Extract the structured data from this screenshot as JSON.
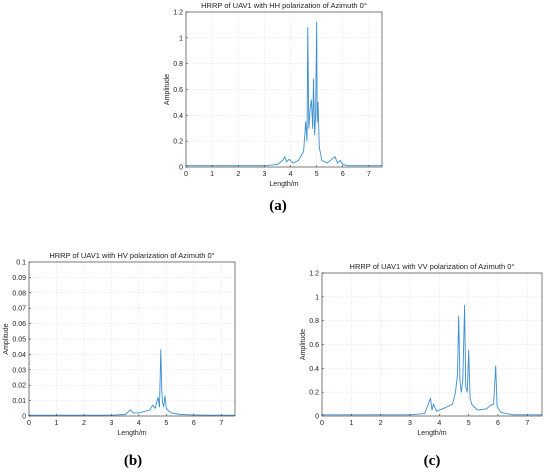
{
  "chart_data": [
    {
      "type": "line",
      "panel": "a",
      "caption": "(a)",
      "title": "HRRP of UAV1 with HH polarization of Azimuth 0°",
      "xlabel": "Length/m",
      "ylabel": "Amplitude",
      "xlim": [
        0,
        7.5
      ],
      "ylim": [
        0,
        1.2
      ],
      "xticks": [
        0,
        1,
        2,
        3,
        4,
        5,
        6,
        7
      ],
      "yticks": [
        0,
        0.2,
        0.4,
        0.6,
        0.8,
        1,
        1.2
      ],
      "ytick_labels": [
        "0",
        "0.2",
        "0.4",
        "0.6",
        "0.8",
        "1",
        "1.2"
      ],
      "grid": true,
      "color": "#3a8fcf",
      "x": [
        0,
        0.5,
        1,
        1.5,
        2,
        2.5,
        3,
        3.5,
        3.7,
        3.78,
        3.85,
        3.95,
        4.1,
        4.3,
        4.5,
        4.58,
        4.63,
        4.66,
        4.7,
        4.75,
        4.8,
        4.85,
        4.88,
        4.92,
        4.96,
        5.0,
        5.02,
        5.05,
        5.1,
        5.2,
        5.4,
        5.7,
        5.8,
        5.9,
        6.0,
        6.2,
        6.5,
        7,
        7.5
      ],
      "y": [
        0.01,
        0.01,
        0.01,
        0.01,
        0.01,
        0.01,
        0.01,
        0.02,
        0.05,
        0.08,
        0.04,
        0.06,
        0.03,
        0.05,
        0.12,
        0.35,
        0.2,
        1.08,
        0.3,
        0.45,
        0.52,
        0.3,
        0.68,
        0.25,
        0.4,
        1.12,
        0.35,
        0.5,
        0.15,
        0.05,
        0.03,
        0.08,
        0.03,
        0.05,
        0.02,
        0.01,
        0.01,
        0.01,
        0.01
      ]
    },
    {
      "type": "line",
      "panel": "b",
      "caption": "(b)",
      "title": "HRRP of UAV1 with HV polarization of Azimuth 0°",
      "xlabel": "Length/m",
      "ylabel": "Amplitude",
      "xlim": [
        0,
        7.5
      ],
      "ylim": [
        0,
        0.1
      ],
      "xticks": [
        0,
        1,
        2,
        3,
        4,
        5,
        6,
        7
      ],
      "yticks": [
        0,
        0.01,
        0.02,
        0.03,
        0.04,
        0.05,
        0.06,
        0.07,
        0.08,
        0.09,
        0.1
      ],
      "ytick_labels": [
        "0",
        "0.01",
        "0.02",
        "0.03",
        "0.04",
        "0.05",
        "0.06",
        "0.07",
        "0.08",
        "0.09",
        "0.1"
      ],
      "grid": true,
      "color": "#3a8fcf",
      "x": [
        0,
        0.5,
        1,
        1.5,
        2,
        2.5,
        3,
        3.5,
        3.7,
        3.8,
        4.0,
        4.2,
        4.4,
        4.5,
        4.6,
        4.65,
        4.7,
        4.75,
        4.8,
        4.83,
        4.86,
        4.9,
        4.95,
        5.0,
        5.1,
        5.2,
        5.5,
        6,
        6.5,
        7,
        7.5
      ],
      "y": [
        0.0005,
        0.0005,
        0.0005,
        0.0005,
        0.0005,
        0.0005,
        0.0005,
        0.001,
        0.004,
        0.002,
        0.002,
        0.003,
        0.004,
        0.007,
        0.005,
        0.009,
        0.012,
        0.006,
        0.043,
        0.018,
        0.009,
        0.006,
        0.013,
        0.005,
        0.003,
        0.002,
        0.001,
        0.0007,
        0.0005,
        0.0005,
        0.0005
      ]
    },
    {
      "type": "line",
      "panel": "c",
      "caption": "(c)",
      "title": "HRRP of UAV1 with VV polarization of Azimuth 0°",
      "xlabel": "Length/m",
      "ylabel": "Amplitude",
      "xlim": [
        0,
        7.5
      ],
      "ylim": [
        0,
        1.2
      ],
      "xticks": [
        0,
        1,
        2,
        3,
        4,
        5,
        6,
        7
      ],
      "yticks": [
        0,
        0.2,
        0.4,
        0.6,
        0.8,
        1,
        1.2
      ],
      "ytick_labels": [
        "0",
        "0.2",
        "0.4",
        "0.6",
        "0.8",
        "1",
        "1.2"
      ],
      "grid": true,
      "color": "#3a8fcf",
      "x": [
        0,
        0.5,
        1,
        1.5,
        2,
        2.5,
        3,
        3.5,
        3.7,
        3.75,
        3.8,
        3.9,
        4.1,
        4.3,
        4.45,
        4.55,
        4.62,
        4.66,
        4.7,
        4.75,
        4.8,
        4.86,
        4.9,
        4.95,
        5.0,
        5.05,
        5.1,
        5.3,
        5.6,
        5.75,
        5.85,
        5.92,
        5.97,
        6.1,
        6.5,
        7,
        7.5
      ],
      "y": [
        0.01,
        0.01,
        0.01,
        0.01,
        0.01,
        0.01,
        0.01,
        0.02,
        0.15,
        0.05,
        0.1,
        0.04,
        0.06,
        0.08,
        0.1,
        0.2,
        0.35,
        0.84,
        0.3,
        0.2,
        0.3,
        0.93,
        0.25,
        0.2,
        0.55,
        0.15,
        0.1,
        0.05,
        0.06,
        0.09,
        0.1,
        0.42,
        0.08,
        0.03,
        0.01,
        0.01,
        0.01
      ]
    }
  ]
}
